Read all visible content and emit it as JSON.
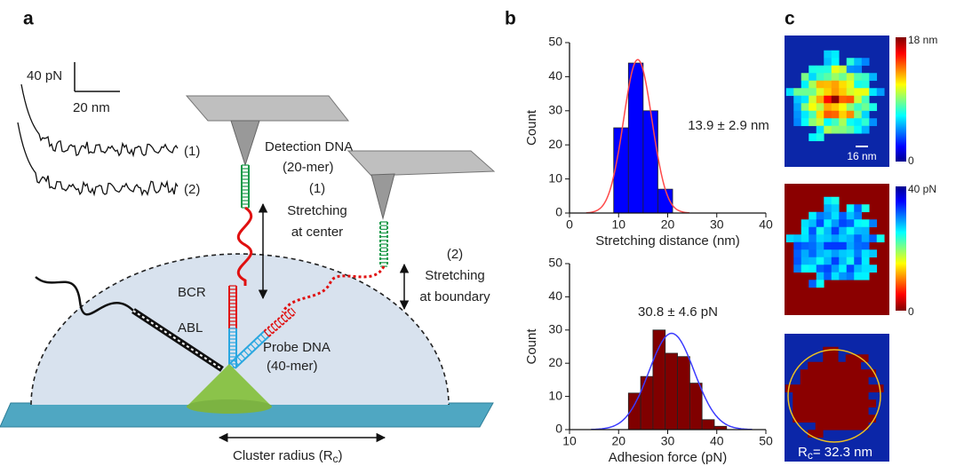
{
  "panel_a": {
    "label": "a",
    "scale_force": "40 pN",
    "scale_distance": "20 nm",
    "trace_1": "(1)",
    "trace_2": "(2)",
    "detection_dna": [
      "Detection DNA",
      "(20-mer)"
    ],
    "stretch_center": [
      "(1)",
      "Stretching",
      "at center"
    ],
    "stretch_boundary": [
      "(2)",
      "Stretching",
      "at boundary"
    ],
    "bcr": "BCR",
    "abl": "ABL",
    "probe_dna": [
      "Probe DNA",
      "(40-mer)"
    ],
    "cluster_radius": {
      "text": "Cluster radius (R",
      "sub": "c",
      "close": ")"
    }
  },
  "panel_b_label": "b",
  "chart_data": [
    {
      "type": "histogram",
      "bins": [
        9,
        12,
        15,
        18,
        21
      ],
      "counts": [
        25,
        44,
        30,
        7
      ],
      "color": "#0000ff",
      "xlabel": "Stretching distance (nm)",
      "ylabel": "Count",
      "xlim": [
        0,
        40
      ],
      "xticks": [
        0,
        10,
        20,
        30,
        40
      ],
      "ylim": [
        0,
        50
      ],
      "yticks": [
        0,
        10,
        20,
        30,
        40,
        50
      ],
      "fit": {
        "label": "13.9 ± 2.9 nm",
        "mean": 13.9,
        "sd": 2.9,
        "peak": 45,
        "color": "#ff4a4a"
      }
    },
    {
      "type": "histogram",
      "bins": [
        22,
        24.5,
        27,
        29.5,
        32,
        34.5,
        37,
        39.5,
        42
      ],
      "counts": [
        11,
        16,
        30,
        23,
        22,
        14,
        3,
        1
      ],
      "color": "#800000",
      "xlabel": "Adhesion force (pN)",
      "ylabel": "Count",
      "xlim": [
        10,
        50
      ],
      "xticks": [
        10,
        20,
        30,
        40,
        50
      ],
      "ylim": [
        0,
        50
      ],
      "yticks": [
        0,
        10,
        20,
        30,
        40,
        50
      ],
      "fit": {
        "label": "30.8 ± 4.6 pN",
        "mean": 30.8,
        "sd": 4.6,
        "peak": 29,
        "color": "#3b3bff"
      }
    }
  ],
  "panel_c": {
    "label": "c",
    "colorbar_1": {
      "max": "18 nm",
      "min": "0"
    },
    "scale_bar": "16 nm",
    "colorbar_2": {
      "max": "40 pN",
      "min": "0"
    },
    "fit_radius": {
      "prefix": "R",
      "sub": "c",
      "text": "= 32.3 nm"
    }
  }
}
